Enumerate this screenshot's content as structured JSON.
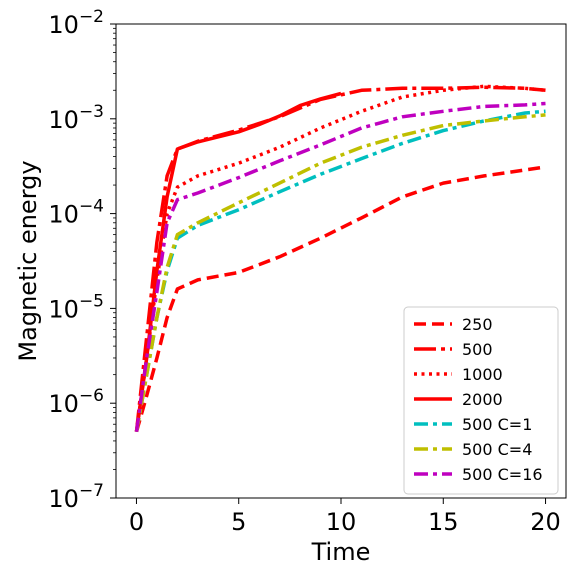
{
  "chart_data": {
    "type": "line",
    "title": "",
    "xlabel": "Time",
    "ylabel": "Magnetic energy",
    "xlim": [
      -1,
      21
    ],
    "ylim": [
      1e-07,
      0.01
    ],
    "yscale": "log",
    "grid": false,
    "legend_position": "bottom-right",
    "xticks": [
      {
        "value": 0,
        "label": "0"
      },
      {
        "value": 5,
        "label": "5"
      },
      {
        "value": 10,
        "label": "10"
      },
      {
        "value": 15,
        "label": "15"
      },
      {
        "value": 20,
        "label": "20"
      }
    ],
    "yticks": [
      {
        "value": 1e-07,
        "base": "10",
        "exp": "−7"
      },
      {
        "value": 1e-06,
        "base": "10",
        "exp": "−6"
      },
      {
        "value": 1e-05,
        "base": "10",
        "exp": "−5"
      },
      {
        "value": 0.0001,
        "base": "10",
        "exp": "−4"
      },
      {
        "value": 0.001,
        "base": "10",
        "exp": "−3"
      },
      {
        "value": 0.01,
        "base": "10",
        "exp": "−2"
      }
    ],
    "series": [
      {
        "name": "250",
        "color": "#ff0000",
        "style": "dashed",
        "x": [
          0,
          0.5,
          1,
          1.5,
          2,
          3,
          5,
          7,
          9,
          11,
          13,
          15,
          17,
          20
        ],
        "y": [
          5e-07,
          1.2e-06,
          3e-06,
          8e-06,
          1.6e-05,
          2e-05,
          2.4e-05,
          3.5e-05,
          5.5e-05,
          9e-05,
          0.00015,
          0.00021,
          0.00025,
          0.00031
        ]
      },
      {
        "name": "500",
        "color": "#ff0000",
        "style": "dashdot-long",
        "x": [
          0,
          0.5,
          1,
          1.5,
          2,
          3,
          5,
          7,
          9,
          11,
          13,
          15,
          17,
          19,
          20
        ],
        "y": [
          5e-07,
          5e-06,
          5e-05,
          0.00025,
          0.00048,
          0.00058,
          0.00076,
          0.00105,
          0.0016,
          0.002,
          0.0021,
          0.0021,
          0.00215,
          0.0021,
          0.002
        ]
      },
      {
        "name": "1000",
        "color": "#ff0000",
        "style": "dotted",
        "x": [
          0,
          0.5,
          1,
          1.5,
          2,
          3,
          5,
          7,
          9,
          11,
          13,
          15,
          17,
          19,
          20
        ],
        "y": [
          5e-07,
          3e-06,
          2e-05,
          0.0001,
          0.00019,
          0.00025,
          0.00034,
          0.0005,
          0.0008,
          0.0012,
          0.0017,
          0.002,
          0.0022,
          0.0021,
          0.002
        ]
      },
      {
        "name": "2000",
        "color": "#ff0000",
        "style": "solid",
        "x": [
          0,
          0.5,
          1,
          1.5,
          2,
          3,
          5,
          6,
          7,
          8,
          9,
          10
        ],
        "y": [
          5e-07,
          3e-06,
          2.5e-05,
          0.00015,
          0.00048,
          0.00057,
          0.00073,
          0.00087,
          0.00107,
          0.00138,
          0.00162,
          0.00185
        ]
      },
      {
        "name": "500 C=1",
        "color": "#00bfbf",
        "style": "dashdot",
        "x": [
          0,
          0.5,
          1,
          1.5,
          2,
          3,
          5,
          7,
          9,
          11,
          13,
          15,
          17,
          19,
          20
        ],
        "y": [
          5e-07,
          2e-06,
          8e-06,
          2.5e-05,
          5.5e-05,
          7.5e-05,
          0.00011,
          0.00017,
          0.00026,
          0.00038,
          0.00055,
          0.00075,
          0.00095,
          0.00115,
          0.0012
        ]
      },
      {
        "name": "500 C=4",
        "color": "#bfbf00",
        "style": "dashdot",
        "x": [
          0,
          0.5,
          1,
          1.5,
          2,
          3,
          5,
          7,
          9,
          11,
          13,
          15,
          17,
          19,
          20
        ],
        "y": [
          5e-07,
          2e-06,
          8e-06,
          2.7e-05,
          6e-05,
          8e-05,
          0.00013,
          0.00021,
          0.00034,
          0.0005,
          0.00067,
          0.00085,
          0.00095,
          0.00105,
          0.0011
        ]
      },
      {
        "name": "500 C=16",
        "color": "#bf00bf",
        "style": "dashdot",
        "x": [
          0,
          0.5,
          1,
          1.5,
          2,
          3,
          5,
          7,
          9,
          11,
          13,
          15,
          17,
          19,
          20
        ],
        "y": [
          5e-07,
          3e-06,
          1.5e-05,
          8e-05,
          0.00014,
          0.000165,
          0.00024,
          0.00036,
          0.00053,
          0.0008,
          0.00105,
          0.0012,
          0.00135,
          0.0014,
          0.00145
        ]
      }
    ]
  }
}
